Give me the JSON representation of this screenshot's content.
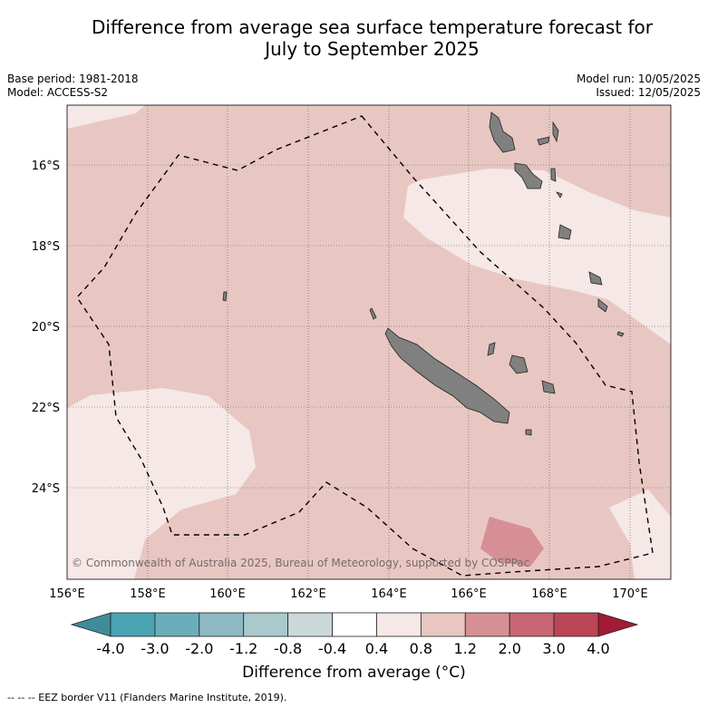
{
  "title": {
    "line1": "Difference from average sea surface temperature forecast for",
    "line2": "July to September 2025"
  },
  "meta": {
    "base_period": "Base period: 1981-2018",
    "model": "Model: ACCESS-S2",
    "model_run": "Model run: 10/05/2025",
    "issued": "Issued: 12/05/2025"
  },
  "map": {
    "lon_min": 156,
    "lon_max": 171,
    "lat_min": -26.3,
    "lat_max": -14.5,
    "lat_ticks": [
      "16°S",
      "18°S",
      "20°S",
      "22°S",
      "24°S"
    ],
    "lon_ticks": [
      "156°E",
      "158°E",
      "160°E",
      "162°E",
      "164°E",
      "166°E",
      "168°E",
      "170°E"
    ],
    "copyright": "© Commonwealth of Australia 2025, Bureau of Meteorology, supported by COSPPac",
    "colors": {
      "background_anomaly": "#e8c7c2",
      "light_anomaly": "#f5e8e6",
      "warm_anomaly": "#d68f95",
      "land": "#808080"
    }
  },
  "colorbar": {
    "labels": [
      "-4.0",
      "-3.0",
      "-2.0",
      "-1.2",
      "-0.8",
      "-0.4",
      "0.4",
      "0.8",
      "1.2",
      "2.0",
      "3.0",
      "4.0"
    ],
    "colors": [
      "#4aa3b2",
      "#6aaebc",
      "#8db9c4",
      "#a9c9cd",
      "#cbd8da",
      "#ffffff",
      "#f5e8e6",
      "#e8c7c2",
      "#d68f95",
      "#c96673",
      "#bb4656"
    ],
    "low_end_color": "#3e8c99",
    "high_end_color": "#a31a35",
    "title": "Difference from average (°C)"
  },
  "footnote": "-- -- -- EEZ border V11 (Flanders Marine Institute, 2019)."
}
